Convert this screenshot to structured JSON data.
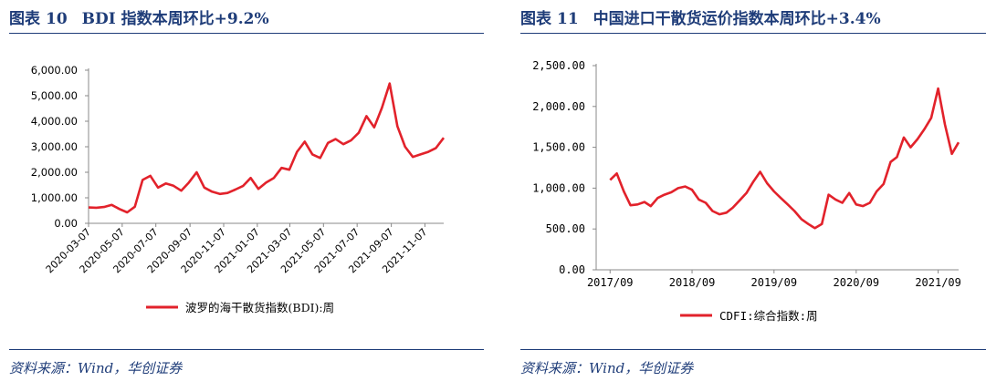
{
  "colors": {
    "accent": "#1f3d79",
    "series": "#e2222b"
  },
  "panels": [
    {
      "figure_prefix": "图表",
      "figure_number": "10",
      "title": "BDI 指数本周环比+9.2%",
      "source": "资料来源：Wind，华创证券"
    },
    {
      "figure_prefix": "图表",
      "figure_number": "11",
      "title": "中国进口干散货运价指数本周环比+3.4%",
      "source": "资料来源：Wind，华创证券"
    }
  ],
  "chart_data": [
    {
      "type": "line",
      "title": "",
      "xlabel": "",
      "ylabel": "",
      "ylim": [
        0,
        6000
      ],
      "y_ticks": [
        0,
        1000,
        2000,
        3000,
        4000,
        5000,
        6000
      ],
      "y_tick_labels": [
        "0.00",
        "1,000.00",
        "2,000.00",
        "3,000.00",
        "4,000.00",
        "5,000.00",
        "6,000.00"
      ],
      "x_tick_labels": [
        "2020-03-07",
        "2020-05-07",
        "2020-07-07",
        "2020-09-07",
        "2020-11-07",
        "2021-01-07",
        "2021-03-07",
        "2021-05-07",
        "2021-07-07",
        "2021-09-07",
        "2021-11-07"
      ],
      "grid": false,
      "legend_position": "bottom-center",
      "series": [
        {
          "name": "波罗的海干散货指数(BDI):周",
          "color": "#e2222b",
          "x": [
            "2020-03-07",
            "2020-03-21",
            "2020-04-04",
            "2020-04-18",
            "2020-05-02",
            "2020-05-16",
            "2020-05-30",
            "2020-06-13",
            "2020-06-27",
            "2020-07-11",
            "2020-07-25",
            "2020-08-08",
            "2020-08-22",
            "2020-09-05",
            "2020-09-19",
            "2020-10-03",
            "2020-10-17",
            "2020-10-31",
            "2020-11-14",
            "2020-11-28",
            "2020-12-12",
            "2020-12-26",
            "2021-01-09",
            "2021-01-23",
            "2021-02-06",
            "2021-02-20",
            "2021-03-06",
            "2021-03-20",
            "2021-04-03",
            "2021-04-17",
            "2021-05-01",
            "2021-05-15",
            "2021-05-29",
            "2021-06-12",
            "2021-06-26",
            "2021-07-10",
            "2021-07-24",
            "2021-08-07",
            "2021-08-21",
            "2021-09-04",
            "2021-09-18",
            "2021-10-02",
            "2021-10-16",
            "2021-10-30",
            "2021-11-13",
            "2021-11-27",
            "2021-12-11"
          ],
          "values": [
            620,
            610,
            640,
            720,
            560,
            430,
            650,
            1700,
            1860,
            1400,
            1560,
            1470,
            1280,
            1600,
            2000,
            1400,
            1240,
            1150,
            1190,
            1320,
            1460,
            1780,
            1350,
            1600,
            1780,
            2170,
            2100,
            2800,
            3200,
            2700,
            2560,
            3150,
            3300,
            3100,
            3250,
            3550,
            4200,
            3760,
            4520,
            5480,
            3800,
            3000,
            2600,
            2700,
            2800,
            2950,
            3350
          ]
        }
      ]
    },
    {
      "type": "line",
      "title": "",
      "xlabel": "",
      "ylabel": "",
      "ylim": [
        0,
        2500
      ],
      "y_ticks": [
        0,
        500,
        1000,
        1500,
        2000,
        2500
      ],
      "y_tick_labels": [
        "0.00",
        "500.00",
        "1,000.00",
        "1,500.00",
        "2,000.00",
        "2,500.00"
      ],
      "x_tick_labels": [
        "2017/09",
        "2018/09",
        "2019/09",
        "2020/09",
        "2021/09"
      ],
      "grid": false,
      "legend_position": "bottom-center",
      "series": [
        {
          "name": "CDFI:综合指数:周",
          "color": "#e2222b",
          "x": [
            "2017-09",
            "2017-10",
            "2017-11",
            "2017-12",
            "2018-01",
            "2018-02",
            "2018-03",
            "2018-04",
            "2018-05",
            "2018-06",
            "2018-07",
            "2018-08",
            "2018-09",
            "2018-10",
            "2018-11",
            "2018-12",
            "2019-01",
            "2019-02",
            "2019-03",
            "2019-04",
            "2019-05",
            "2019-06",
            "2019-07",
            "2019-08",
            "2019-09",
            "2019-10",
            "2019-11",
            "2019-12",
            "2020-01",
            "2020-02",
            "2020-03",
            "2020-04",
            "2020-05",
            "2020-06",
            "2020-07",
            "2020-08",
            "2020-09",
            "2020-10",
            "2020-11",
            "2020-12",
            "2021-01",
            "2021-02",
            "2021-03",
            "2021-04",
            "2021-05",
            "2021-06",
            "2021-07",
            "2021-08",
            "2021-09",
            "2021-10",
            "2021-11",
            "2021-12"
          ],
          "values": [
            1100,
            1180,
            960,
            790,
            800,
            830,
            780,
            880,
            920,
            950,
            1000,
            1020,
            980,
            860,
            820,
            720,
            680,
            700,
            760,
            850,
            940,
            1080,
            1200,
            1060,
            960,
            880,
            800,
            720,
            620,
            560,
            510,
            560,
            920,
            860,
            820,
            940,
            800,
            780,
            820,
            960,
            1050,
            1320,
            1380,
            1620,
            1500,
            1600,
            1720,
            1860,
            2220,
            1780,
            1420,
            1560
          ]
        }
      ]
    }
  ]
}
